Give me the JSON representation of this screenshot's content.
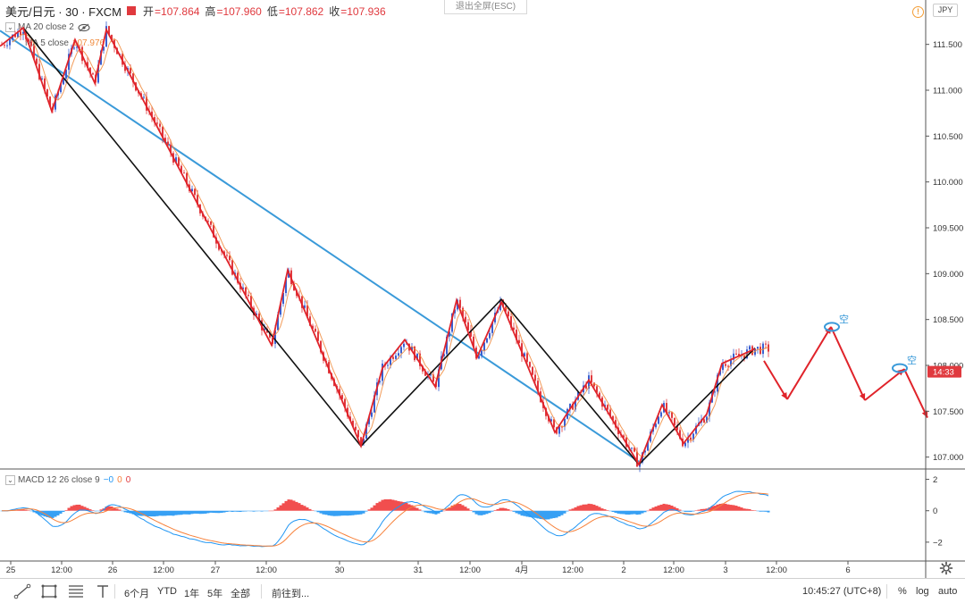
{
  "header": {
    "symbol": "美元/日元 · 30 · FXCM",
    "ohlc": [
      {
        "key": "开",
        "value": "=107.864"
      },
      {
        "key": "高",
        "value": "=107.960"
      },
      {
        "key": "低",
        "value": "=107.862"
      },
      {
        "key": "收",
        "value": "=107.936"
      }
    ],
    "exit_fullscreen": "退出全屏(ESC)",
    "currency": "JPY",
    "warn_icon": "!"
  },
  "legends": {
    "ma20": "MA 20 close 2",
    "ma5": "MA 5 close",
    "ma5_value": "107.976",
    "macd": "MACD 12 26 close 9",
    "macd_values": [
      "−0",
      "0",
      "0"
    ]
  },
  "colors": {
    "up": "#3a5fd0",
    "down": "#e0393e",
    "zigzag_red": "#e0232a",
    "zigzag_black": "#111111",
    "trendline": "#3a9ad9",
    "ma5": "#f08a3c",
    "macd_line": "#2196f3",
    "signal_line": "#f7813a",
    "hist_pos": "#ef3b3b",
    "hist_neg": "#2196f3",
    "price_tag": "#e0393e"
  },
  "chart_data": {
    "type": "candlestick",
    "symbol": "USD/JPY",
    "timeframe": "30",
    "price_axis": {
      "range": [
        106.88,
        111.75
      ],
      "ticks": [
        "111.500",
        "111.000",
        "110.500",
        "110.000",
        "109.500",
        "109.000",
        "108.500",
        "108.000",
        "107.500",
        "107.000"
      ],
      "current_time_label": "14:33"
    },
    "time_axis": {
      "ticks": [
        "25",
        "12:00",
        "26",
        "12:00",
        "27",
        "12:00",
        "30",
        "31",
        "12:00",
        "4月",
        "12:00",
        "2",
        "12:00",
        "3",
        "12:00",
        "6"
      ]
    },
    "zigzag_red": [
      {
        "t": 0,
        "p": 111.48
      },
      {
        "t": 26,
        "p": 111.68
      },
      {
        "t": 58,
        "p": 110.77
      },
      {
        "t": 84,
        "p": 111.55
      },
      {
        "t": 106,
        "p": 111.08
      },
      {
        "t": 119,
        "p": 111.66
      },
      {
        "t": 304,
        "p": 108.22
      },
      {
        "t": 322,
        "p": 109.04
      },
      {
        "t": 404,
        "p": 107.12
      },
      {
        "t": 428,
        "p": 107.97
      },
      {
        "t": 453,
        "p": 108.28
      },
      {
        "t": 487,
        "p": 107.77
      },
      {
        "t": 511,
        "p": 108.71
      },
      {
        "t": 534,
        "p": 108.09
      },
      {
        "t": 561,
        "p": 108.69
      },
      {
        "t": 621,
        "p": 107.27
      },
      {
        "t": 659,
        "p": 107.84
      },
      {
        "t": 715,
        "p": 106.92
      },
      {
        "t": 741,
        "p": 107.57
      },
      {
        "t": 765,
        "p": 107.15
      },
      {
        "t": 791,
        "p": 107.47
      },
      {
        "t": 808,
        "p": 108.02
      },
      {
        "t": 845,
        "p": 108.18
      }
    ],
    "zigzag_black": [
      {
        "t": 26,
        "p": 111.68
      },
      {
        "t": 404,
        "p": 107.12
      },
      {
        "t": 561,
        "p": 108.72
      },
      {
        "t": 715,
        "p": 106.92
      },
      {
        "t": 845,
        "p": 108.19
      }
    ],
    "trendline": [
      {
        "t": 0,
        "p": 111.65
      },
      {
        "t": 715,
        "p": 106.95
      }
    ],
    "projection_arrows": [
      {
        "from": {
          "t": 855,
          "p": 108.05
        },
        "to": {
          "t": 881,
          "p": 107.63
        }
      },
      {
        "from": {
          "t": 881,
          "p": 107.63
        },
        "to": {
          "t": 930,
          "p": 108.42
        }
      },
      {
        "from": {
          "t": 930,
          "p": 108.42
        },
        "to": {
          "t": 968,
          "p": 107.62
        }
      },
      {
        "from": {
          "t": 968,
          "p": 107.62
        },
        "to": {
          "t": 1012,
          "p": 107.96
        }
      },
      {
        "from": {
          "t": 1012,
          "p": 107.96
        },
        "to": {
          "t": 1038,
          "p": 107.43
        }
      }
    ],
    "markers": [
      {
        "t": 931,
        "p": 108.42,
        "label": "空"
      },
      {
        "t": 1007,
        "p": 107.97,
        "label": "空"
      }
    ],
    "macd": {
      "params": "12 26 close 9",
      "ticks": [
        "2",
        "0",
        "−2"
      ],
      "range": [
        -3.2,
        2.6
      ]
    }
  },
  "bottom_bar": {
    "periods": [
      "6个月",
      "YTD",
      "1年",
      "5年",
      "全部"
    ],
    "goto": "前往到...",
    "clock": "10:45:27 (UTC+8)",
    "percent": "%",
    "log": "log",
    "auto": "auto"
  },
  "icons": [
    "line-tool-icon",
    "rect-tool-icon",
    "fib-tool-icon",
    "text-tool-icon",
    "eye-icon",
    "settings-gear-icon",
    "warning-icon"
  ]
}
